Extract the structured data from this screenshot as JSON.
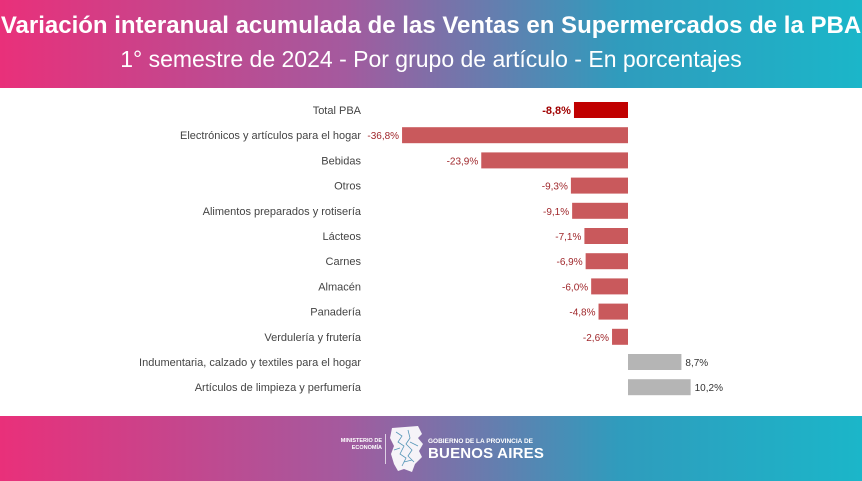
{
  "header": {
    "title": "Variación interanual acumulada de las Ventas en Supermercados de la PBA",
    "subtitle": "1° semestre de 2024 - Por grupo de artículo - En porcentajes"
  },
  "footer": {
    "ministry_line1": "MINISTERIO DE",
    "ministry_line2": "ECONOMÍA",
    "gov_line1": "GOBIERNO DE LA PROVINCIA DE",
    "gov_line2": "BUENOS AIRES",
    "logo_icon": "buenos-aires-map-icon"
  },
  "chart_data": {
    "type": "bar",
    "orientation": "horizontal",
    "title": "Variación interanual acumulada de las Ventas en Supermercados de la PBA",
    "subtitle": "1° semestre de 2024 - Por grupo de artículo - En porcentajes",
    "categories": [
      "Total PBA",
      "Electrónicos y artículos para el hogar",
      "Bebidas",
      "Otros",
      "Alimentos preparados y rotisería",
      "Lácteos",
      "Carnes",
      "Almacén",
      "Panadería",
      "Verdulería y frutería",
      "Indumentaria, calzado y textiles para el hogar",
      "Artículos de limpieza y perfumería"
    ],
    "values": [
      -8.8,
      -36.8,
      -23.9,
      -9.3,
      -9.1,
      -7.1,
      -6.9,
      -6.0,
      -4.8,
      -2.6,
      8.7,
      10.2
    ],
    "labels": [
      "-8,8%",
      "-36,8%",
      "-23,9%",
      "-9,3%",
      "-9,1%",
      "-7,1%",
      "-6,9%",
      "-6,0%",
      "-4,8%",
      "-2,6%",
      "8,7%",
      "10,2%"
    ],
    "highlight_index": 0,
    "colors": {
      "highlight": "#c00000",
      "negative": "#c9595c",
      "positive": "#b5b5b5",
      "highlight_label": "#a00000",
      "negative_label": "#a0282c",
      "positive_label": "#333333",
      "category_text": "#444444"
    },
    "xlim": [
      -37,
      11
    ],
    "grid": false,
    "legend": "none"
  }
}
